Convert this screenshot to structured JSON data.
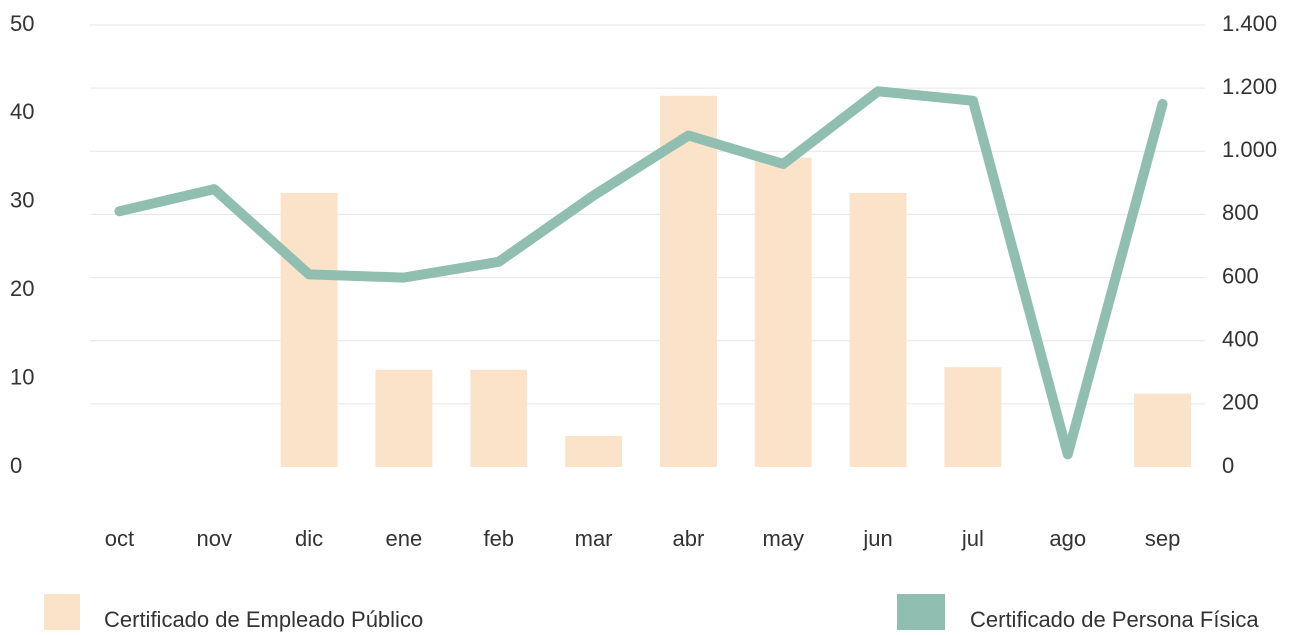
{
  "chart_data": {
    "type": "bar_line",
    "categories": [
      "oct",
      "nov",
      "dic",
      "ene",
      "feb",
      "mar",
      "abr",
      "may",
      "jun",
      "jul",
      "ago",
      "sep"
    ],
    "series": [
      {
        "name": "Certificado de Empleado Público",
        "type": "bar",
        "color": "#fbe3ca",
        "axis": "y",
        "values": [
          null,
          null,
          31,
          11,
          11,
          3.5,
          42,
          35,
          31,
          11.3,
          null,
          8.3
        ]
      },
      {
        "name": "Certificado de Persona Física",
        "type": "line",
        "color": "#90bfb1",
        "axis": "y2",
        "values": [
          810,
          880,
          610,
          600,
          650,
          860,
          1050,
          960,
          1190,
          1160,
          40,
          1150
        ]
      }
    ],
    "ylim": [
      0,
      50
    ],
    "yticks": [
      0,
      10,
      20,
      30,
      40,
      50
    ],
    "y2lim": [
      0,
      1400
    ],
    "y2ticks": [
      0,
      200,
      400,
      600,
      800,
      {
        "value": 1000,
        "label": "1.000"
      },
      {
        "value": 1200,
        "label": "1.200"
      },
      {
        "value": 1400,
        "label": "1.400"
      }
    ],
    "grid": true,
    "legend": "bottom"
  }
}
